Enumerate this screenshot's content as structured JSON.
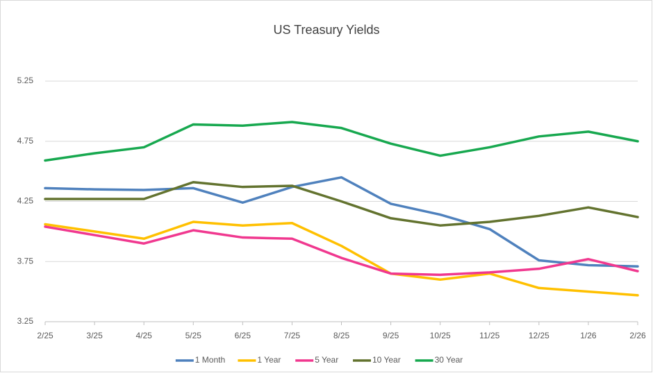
{
  "chart_data": {
    "type": "line",
    "title": "US Treasury Yields",
    "categories": [
      "2/25",
      "3/25",
      "4/25",
      "5/25",
      "6/25",
      "7/25",
      "8/25",
      "9/25",
      "10/25",
      "11/25",
      "12/25",
      "1/26",
      "2/26"
    ],
    "series": [
      {
        "name": "1 Month",
        "color": "#4f81bd",
        "values": [
          4.36,
          4.35,
          4.345,
          4.36,
          4.24,
          4.37,
          4.45,
          4.23,
          4.14,
          4.02,
          3.76,
          3.72,
          3.71
        ]
      },
      {
        "name": "1 Year",
        "color": "#ffc000",
        "values": [
          4.06,
          4.0,
          3.94,
          4.08,
          4.05,
          4.07,
          3.88,
          3.65,
          3.6,
          3.65,
          3.53,
          3.5,
          3.47
        ]
      },
      {
        "name": "5 Year",
        "color": "#f0388f",
        "values": [
          4.04,
          3.97,
          3.9,
          4.01,
          3.95,
          3.94,
          3.78,
          3.65,
          3.64,
          3.66,
          3.69,
          3.77,
          3.67
        ]
      },
      {
        "name": "10 Year",
        "color": "#63732f",
        "values": [
          4.27,
          4.27,
          4.27,
          4.41,
          4.37,
          4.38,
          4.25,
          4.11,
          4.05,
          4.08,
          4.13,
          4.2,
          4.12
        ]
      },
      {
        "name": "30 Year",
        "color": "#17a84f",
        "values": [
          4.59,
          4.65,
          4.7,
          4.89,
          4.88,
          4.91,
          4.86,
          4.73,
          4.63,
          4.7,
          4.79,
          4.83,
          4.75
        ]
      }
    ],
    "ylim": [
      3.25,
      5.25
    ],
    "yticks": [
      3.25,
      3.75,
      4.25,
      4.75,
      5.25
    ],
    "grid": true,
    "legend": "bottom"
  }
}
